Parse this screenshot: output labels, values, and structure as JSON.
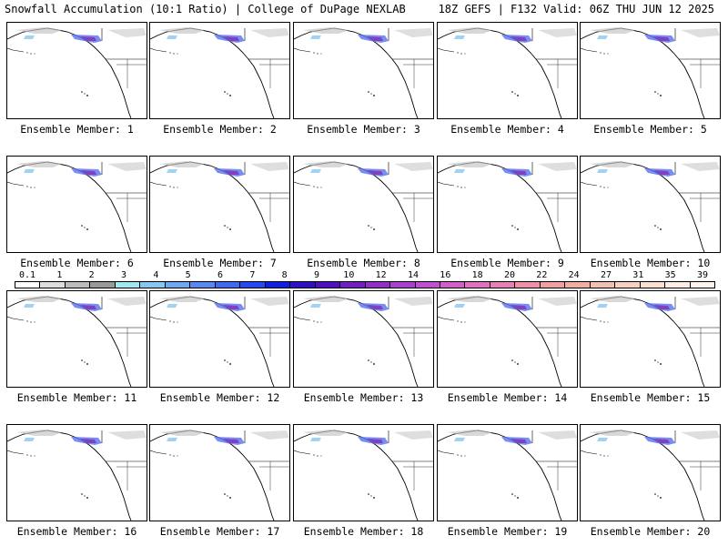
{
  "header": {
    "left_title": "Snowfall Accumulation (10:1 Ratio) | College of DuPage NEXLAB",
    "right_title": "18Z GEFS | F132 Valid: 06Z THU JUN 12 2025"
  },
  "members": [
    "Ensemble Member: 1",
    "Ensemble Member: 2",
    "Ensemble Member: 3",
    "Ensemble Member: 4",
    "Ensemble Member: 5",
    "Ensemble Member: 6",
    "Ensemble Member: 7",
    "Ensemble Member: 8",
    "Ensemble Member: 9",
    "Ensemble Member: 10",
    "Ensemble Member: 11",
    "Ensemble Member: 12",
    "Ensemble Member: 13",
    "Ensemble Member: 14",
    "Ensemble Member: 15",
    "Ensemble Member: 16",
    "Ensemble Member: 17",
    "Ensemble Member: 18",
    "Ensemble Member: 19",
    "Ensemble Member: 20"
  ],
  "colorbar": {
    "labels": [
      "0.1",
      "1",
      "2",
      "3",
      "4",
      "5",
      "6",
      "7",
      "8",
      "9",
      "10",
      "12",
      "14",
      "16",
      "18",
      "20",
      "22",
      "24",
      "27",
      "31",
      "35",
      "39"
    ],
    "colors": [
      "#ffffff",
      "#dddddd",
      "#bbbbbb",
      "#999999",
      "#a0e8f0",
      "#88c8f0",
      "#70a8f0",
      "#5888f0",
      "#4068f0",
      "#2848f0",
      "#1020e0",
      "#3010c0",
      "#5010c0",
      "#7020c0",
      "#9030c8",
      "#a840d0",
      "#c050d0",
      "#d060c8",
      "#e070c0",
      "#e880b8",
      "#f090a8",
      "#f0a0a0",
      "#f0b0a0",
      "#f0c0b0",
      "#f8d0c0",
      "#fae0d0",
      "#fcece4",
      "#fff4ec"
    ]
  },
  "colors": {
    "snow_light": "#c8c8c8",
    "snow_blue": "#3050f0",
    "snow_purple": "#8030b0"
  }
}
